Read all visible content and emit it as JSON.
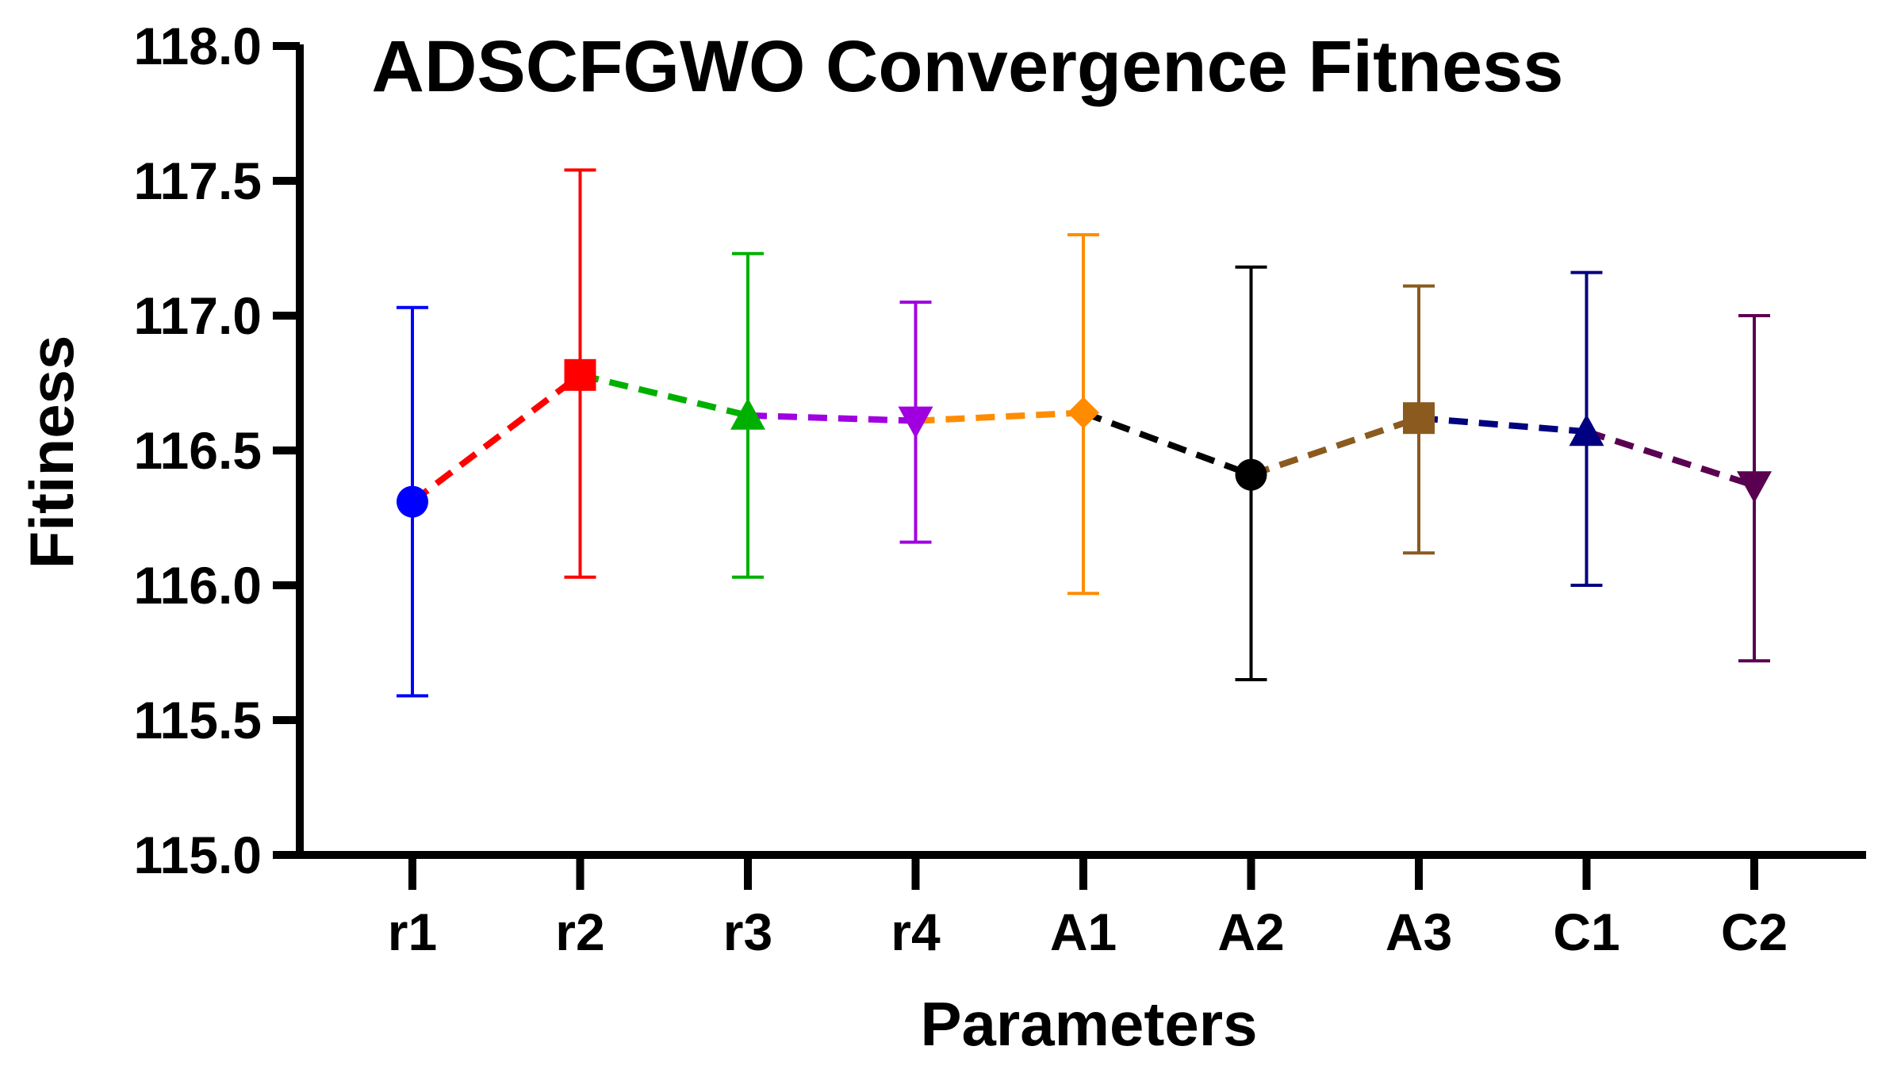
{
  "chart_data": {
    "type": "scatter",
    "title": "ADSCFGWO Convergence Fitness",
    "xlabel": "Parameters",
    "ylabel": "Fitiness",
    "ylim": [
      115.0,
      118.0
    ],
    "yticks": [
      "115.0",
      "115.5",
      "116.0",
      "116.5",
      "117.0",
      "117.5",
      "118.0"
    ],
    "grid": false,
    "categories": [
      "r1",
      "r2",
      "r3",
      "r4",
      "A1",
      "A2",
      "A3",
      "C1",
      "C2"
    ],
    "points": [
      {
        "label": "r1",
        "mean": 116.31,
        "err_high": 117.03,
        "err_low": 115.59,
        "color": "#0000ff",
        "marker": "circle"
      },
      {
        "label": "r2",
        "mean": 116.78,
        "err_high": 117.54,
        "err_low": 116.03,
        "color": "#ff0000",
        "marker": "square"
      },
      {
        "label": "r3",
        "mean": 116.63,
        "err_high": 117.23,
        "err_low": 116.03,
        "color": "#00b000",
        "marker": "triangle-up"
      },
      {
        "label": "r4",
        "mean": 116.61,
        "err_high": 117.05,
        "err_low": 116.16,
        "color": "#a000e0",
        "marker": "triangle-down"
      },
      {
        "label": "A1",
        "mean": 116.64,
        "err_high": 117.3,
        "err_low": 115.97,
        "color": "#ff8c00",
        "marker": "diamond"
      },
      {
        "label": "A2",
        "mean": 116.41,
        "err_high": 117.18,
        "err_low": 115.65,
        "color": "#000000",
        "marker": "circle"
      },
      {
        "label": "A3",
        "mean": 116.62,
        "err_high": 117.11,
        "err_low": 116.12,
        "color": "#8b5a1e",
        "marker": "square"
      },
      {
        "label": "C1",
        "mean": 116.57,
        "err_high": 117.16,
        "err_low": 116.0,
        "color": "#000080",
        "marker": "triangle-up"
      },
      {
        "label": "C2",
        "mean": 116.37,
        "err_high": 117.0,
        "err_low": 115.72,
        "color": "#5a0050",
        "marker": "triangle-down"
      }
    ]
  }
}
